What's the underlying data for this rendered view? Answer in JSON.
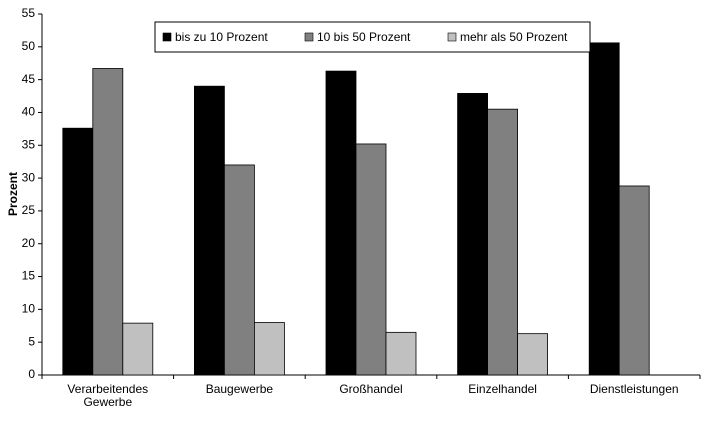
{
  "chart_data": {
    "type": "bar",
    "y_label": "Prozent",
    "categories": [
      "Verarbeitendes Gewerbe",
      "Baugewerbe",
      "Großhandel",
      "Einzelhandel",
      "Dienstleistungen"
    ],
    "series": [
      {
        "name": "bis zu 10 Prozent",
        "color": "#000000",
        "values": [
          37.6,
          44,
          46.3,
          42.9,
          50.6
        ]
      },
      {
        "name": "10 bis 50 Prozent",
        "color": "#808080",
        "values": [
          46.7,
          32,
          35.2,
          40.5,
          28.8
        ]
      },
      {
        "name": "mehr als 50 Prozent",
        "color": "#c0c0c0",
        "values": [
          7.9,
          8,
          6.5,
          6.3,
          null
        ]
      }
    ],
    "ylim": [
      0,
      55
    ],
    "yticks": [
      0,
      5,
      10,
      15,
      20,
      25,
      30,
      35,
      40,
      45,
      50,
      55
    ],
    "grid": false,
    "legend": "top"
  }
}
